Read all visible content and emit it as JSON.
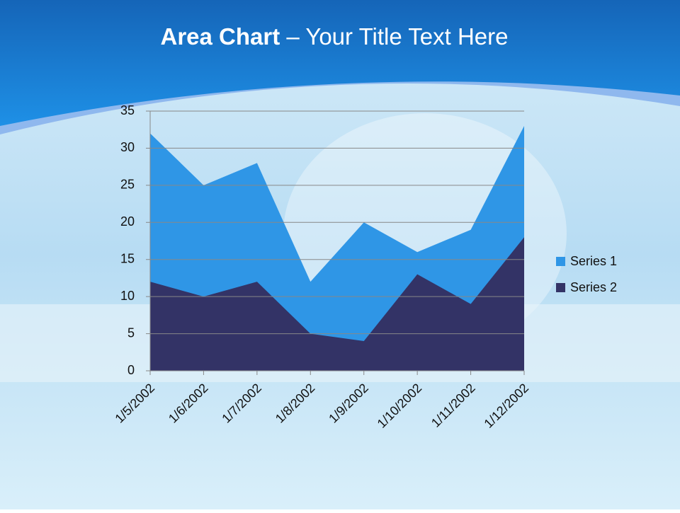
{
  "header": {
    "bold": "Area Chart",
    "text": "– Your Title Text Here"
  },
  "chart_data": {
    "type": "area",
    "categories": [
      "1/5/2002",
      "1/6/2002",
      "1/7/2002",
      "1/8/2002",
      "1/9/2002",
      "1/10/2002",
      "1/11/2002",
      "1/12/2002"
    ],
    "series": [
      {
        "name": "Series 1",
        "color": "#2f96e6",
        "values": [
          32,
          25,
          28,
          12,
          20,
          16,
          19,
          33
        ]
      },
      {
        "name": "Series 2",
        "color": "#333366",
        "values": [
          12,
          10,
          12,
          5,
          4,
          13,
          9,
          18
        ]
      }
    ],
    "ylim": [
      0,
      35
    ],
    "yticks": [
      0,
      5,
      10,
      15,
      20,
      25,
      30,
      35
    ],
    "grid": true,
    "legend": "right"
  }
}
